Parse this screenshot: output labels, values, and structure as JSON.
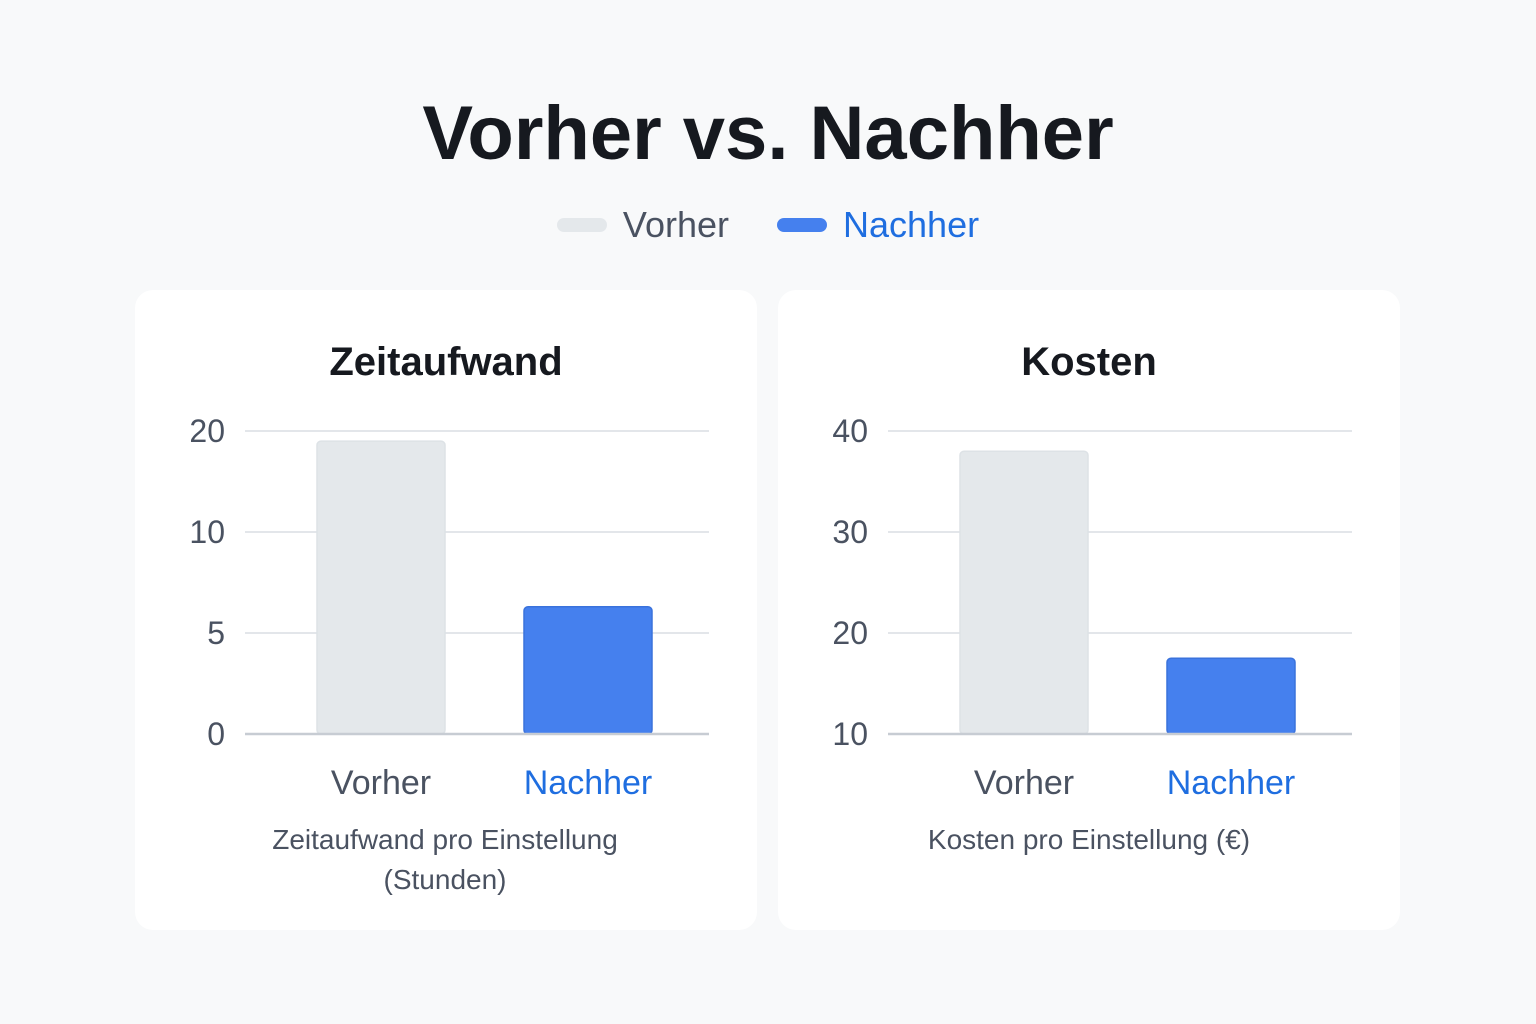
{
  "title": "Vorher vs. Nachher",
  "colors": {
    "vorher": "#e4e8eb",
    "nachher": "#4580ee",
    "vorher_text": "#4a5261",
    "nachher_text": "#1f6ee0",
    "gridline": "#e3e6ea",
    "baseline": "#c7ccd3"
  },
  "legend": [
    {
      "label": "Vorher",
      "color": "#e4e8eb",
      "text_color": "#4a5261"
    },
    {
      "label": "Nachher",
      "color": "#4580ee",
      "text_color": "#1f6ee0"
    }
  ],
  "chart_data": [
    {
      "type": "bar",
      "title": "Zeitaufwand",
      "categories": [
        "Vorher",
        "Nachher"
      ],
      "values": [
        19,
        6.3
      ],
      "ticks": [
        "0",
        "5",
        "10",
        "20"
      ],
      "tick_scale_note": "",
      "caption_lines": [
        "Zeitaufwand pro Einstellung",
        "(Stunden)"
      ],
      "legend_placement": "top-center",
      "grid": true
    },
    {
      "type": "bar",
      "title": "Kosten",
      "categories": [
        "Vorher",
        "Nachher"
      ],
      "values": [
        38,
        17.5
      ],
      "ticks": [
        "10",
        "20",
        "30",
        "40"
      ],
      "caption_lines": [
        "Kosten pro Einstellung (€)"
      ],
      "legend_placement": "top-center",
      "grid": true
    }
  ]
}
